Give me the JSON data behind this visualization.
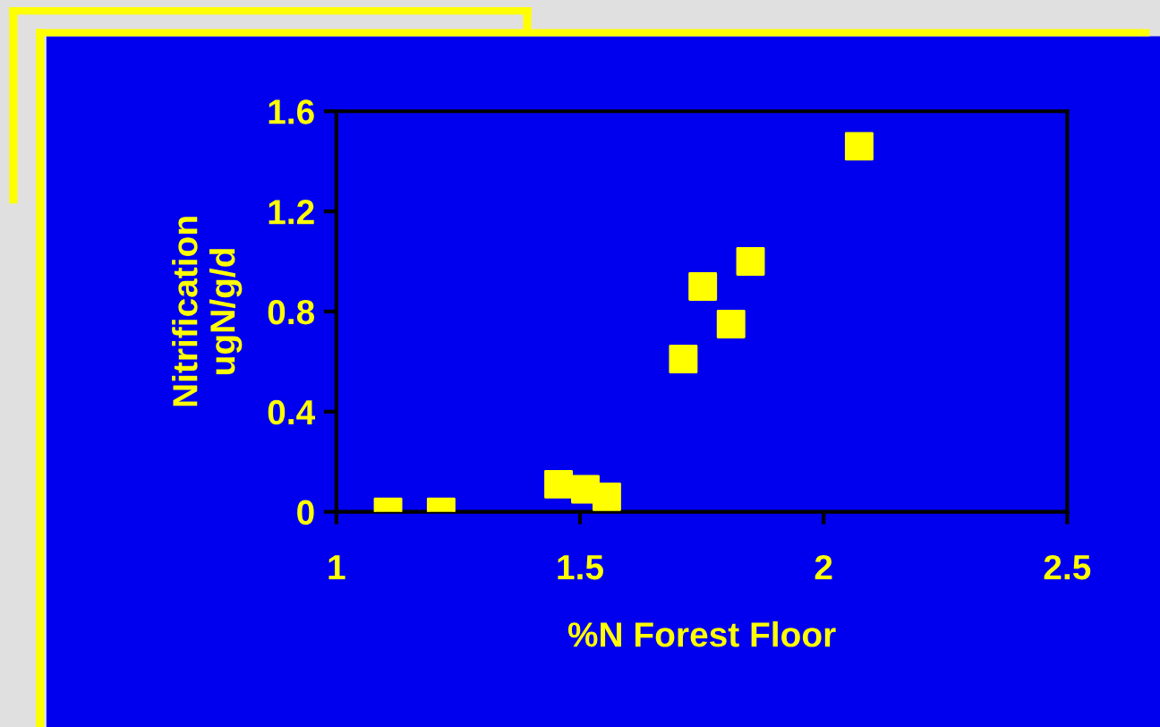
{
  "chart_data": {
    "type": "scatter",
    "xlabel": "%N Forest Floor",
    "ylabel": "Nitrification\nugN/g/d",
    "x": [
      1.106,
      1.215,
      1.456,
      1.511,
      1.555,
      1.712,
      1.752,
      1.81,
      1.85,
      2.073
    ],
    "series": [
      {
        "color": "#ffff00",
        "values": [
          0,
          0,
          0.11,
          0.09,
          0.06,
          0.61,
          0.9,
          0.75,
          1.0,
          1.46
        ]
      }
    ],
    "xlim": [
      1,
      2.5
    ],
    "xticks": [
      1,
      1.5,
      2,
      2.5
    ],
    "ylim": [
      0,
      1.6
    ],
    "yticks": [
      0,
      0.4,
      0.8,
      1.2,
      1.6
    ],
    "marker": "square",
    "grid": false,
    "legend": false
  }
}
